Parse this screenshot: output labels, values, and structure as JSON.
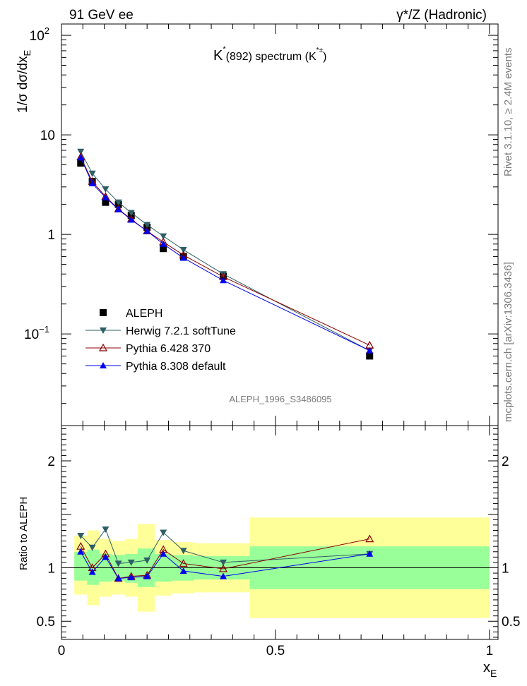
{
  "header": {
    "left": "91 GeV ee",
    "right": "γ*/Z (Hadronic)"
  },
  "side_text": {
    "top": "Rivet 3.1.10, ≥ 2.4M events",
    "bottom": "mcplots.cern.ch [arXiv:1306.3436]"
  },
  "colors": {
    "aleph": "#000000",
    "herwig": "#2f5f66",
    "pythia6": "#8b0000",
    "pythia8": "#0000ee",
    "band_outer": "#ffff99",
    "band_inner": "#99ff99"
  },
  "chart_data": [
    {
      "type": "scatter",
      "title": "K*(892) spectrum (K*±)",
      "title_parts": {
        "main": "K",
        "sup1": "*",
        "mid": "(892) spectrum (K",
        "sup2": "*±",
        "end": ")"
      },
      "ylabel": "1/σ dσ/dx_E",
      "ylabel_parts": {
        "main": "1/σ dσ/dx",
        "sub": "E"
      },
      "yscale": "log",
      "xlim": [
        0,
        1.02
      ],
      "ylim": [
        0.012,
        130
      ],
      "y_ticks": [
        {
          "v": 0.1,
          "label": "10",
          "sup": "−1"
        },
        {
          "v": 1,
          "label": "1",
          "sup": ""
        },
        {
          "v": 10,
          "label": "10",
          "sup": ""
        },
        {
          "v": 100,
          "label": "10",
          "sup": "2"
        }
      ],
      "watermark": "ALEPH_1996_S3486095",
      "legend_position": "bottom-left",
      "series": [
        {
          "name": "ALEPH",
          "marker": "square",
          "line": false,
          "x": [
            0.045,
            0.072,
            0.103,
            0.133,
            0.163,
            0.2,
            0.238,
            0.285,
            0.378,
            0.72
          ],
          "y": [
            5.2,
            3.4,
            2.1,
            2.0,
            1.55,
            1.18,
            0.72,
            0.6,
            0.38,
            0.06
          ]
        },
        {
          "name": "Herwig 7.2.1 softTune",
          "marker": "triangle-down",
          "line": true,
          "x": [
            0.045,
            0.072,
            0.103,
            0.133,
            0.163,
            0.2,
            0.238,
            0.285,
            0.378,
            0.72
          ],
          "y": [
            6.8,
            4.1,
            2.85,
            2.1,
            1.65,
            1.25,
            0.96,
            0.7,
            0.4,
            0.068
          ]
        },
        {
          "name": "Pythia 6.428 370",
          "marker": "triangle-up-open",
          "line": true,
          "x": [
            0.045,
            0.072,
            0.103,
            0.133,
            0.163,
            0.2,
            0.238,
            0.285,
            0.378,
            0.72
          ],
          "y": [
            6.0,
            3.4,
            2.4,
            1.8,
            1.42,
            1.08,
            0.84,
            0.62,
            0.375,
            0.077
          ]
        },
        {
          "name": "Pythia 8.308 default",
          "marker": "triangle-up",
          "line": true,
          "x": [
            0.045,
            0.072,
            0.103,
            0.133,
            0.163,
            0.2,
            0.238,
            0.285,
            0.378,
            0.72
          ],
          "y": [
            5.9,
            3.25,
            2.35,
            1.78,
            1.4,
            1.08,
            0.8,
            0.58,
            0.345,
            0.068
          ]
        }
      ]
    },
    {
      "type": "scatter",
      "ylabel": "Ratio to ALEPH",
      "xlabel": "x_E",
      "xlabel_parts": {
        "main": "x",
        "sub": "E"
      },
      "xlim": [
        0,
        1.02
      ],
      "ylim": [
        0.33,
        2.33
      ],
      "x_ticks": [
        {
          "v": 0,
          "label": "0"
        },
        {
          "v": 0.5,
          "label": "0.5"
        },
        {
          "v": 1,
          "label": "1"
        }
      ],
      "y_ticks": [
        {
          "v": 0.5,
          "label": "0.5"
        },
        {
          "v": 1,
          "label": "1"
        },
        {
          "v": 2,
          "label": "2"
        }
      ],
      "bands": [
        {
          "x0": 0.03,
          "x1": 0.06,
          "outer": [
            0.75,
            1.3
          ],
          "inner": [
            0.88,
            1.15
          ]
        },
        {
          "x0": 0.06,
          "x1": 0.088,
          "outer": [
            0.65,
            1.35
          ],
          "inner": [
            0.84,
            1.17
          ]
        },
        {
          "x0": 0.088,
          "x1": 0.118,
          "outer": [
            0.73,
            1.27
          ],
          "inner": [
            0.87,
            1.13
          ]
        },
        {
          "x0": 0.118,
          "x1": 0.148,
          "outer": [
            0.75,
            1.25
          ],
          "inner": [
            0.88,
            1.12
          ]
        },
        {
          "x0": 0.148,
          "x1": 0.178,
          "outer": [
            0.73,
            1.27
          ],
          "inner": [
            0.86,
            1.13
          ]
        },
        {
          "x0": 0.178,
          "x1": 0.218,
          "outer": [
            0.59,
            1.41
          ],
          "inner": [
            0.82,
            1.18
          ]
        },
        {
          "x0": 0.218,
          "x1": 0.258,
          "outer": [
            0.74,
            1.26
          ],
          "inner": [
            0.87,
            1.13
          ]
        },
        {
          "x0": 0.258,
          "x1": 0.31,
          "outer": [
            0.76,
            1.24
          ],
          "inner": [
            0.88,
            1.12
          ]
        },
        {
          "x0": 0.31,
          "x1": 0.44,
          "outer": [
            0.77,
            1.23
          ],
          "inner": [
            0.89,
            1.11
          ]
        },
        {
          "x0": 0.44,
          "x1": 1.0,
          "outer": [
            0.53,
            1.47
          ],
          "inner": [
            0.8,
            1.2
          ]
        }
      ],
      "series": [
        {
          "name": "Herwig 7.2.1 softTune",
          "marker": "triangle-down",
          "x": [
            0.045,
            0.072,
            0.103,
            0.133,
            0.163,
            0.2,
            0.238,
            0.285,
            0.378,
            0.72
          ],
          "y": [
            1.3,
            1.19,
            1.36,
            1.04,
            1.05,
            1.07,
            1.33,
            1.16,
            1.05,
            1.13
          ]
        },
        {
          "name": "Pythia 6.428 370",
          "marker": "triangle-up-open",
          "x": [
            0.045,
            0.072,
            0.103,
            0.133,
            0.163,
            0.2,
            0.238,
            0.285,
            0.378,
            0.72
          ],
          "y": [
            1.2,
            1.0,
            1.13,
            0.9,
            0.92,
            0.93,
            1.17,
            1.04,
            0.99,
            1.27
          ]
        },
        {
          "name": "Pythia 8.308 default",
          "marker": "triangle-up",
          "x": [
            0.045,
            0.072,
            0.103,
            0.133,
            0.163,
            0.2,
            0.238,
            0.285,
            0.378,
            0.72
          ],
          "y": [
            1.15,
            0.96,
            1.1,
            0.9,
            0.91,
            0.92,
            1.13,
            0.97,
            0.92,
            1.13
          ]
        }
      ]
    }
  ]
}
